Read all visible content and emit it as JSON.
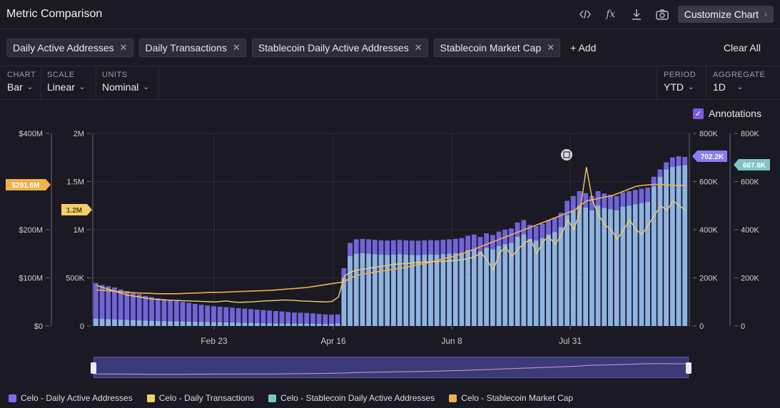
{
  "header": {
    "title": "Metric Comparison",
    "customize_label": "Customize Chart",
    "icons": [
      "code-icon",
      "formula-icon",
      "download-icon",
      "camera-icon"
    ]
  },
  "metrics": {
    "chips": [
      "Daily Active Addresses",
      "Daily Transactions",
      "Stablecoin Daily Active Addresses",
      "Stablecoin Market Cap"
    ],
    "add_label": "+ Add",
    "clear_label": "Clear All"
  },
  "controls": {
    "chart": {
      "label": "CHART",
      "value": "Bar"
    },
    "scale": {
      "label": "SCALE",
      "value": "Linear"
    },
    "units": {
      "label": "UNITS",
      "value": "Nominal"
    },
    "period": {
      "label": "PERIOD",
      "value": "YTD"
    },
    "aggregate": {
      "label": "AGGREGATE",
      "value": "1D"
    }
  },
  "annotations_label": "Annotations",
  "colors": {
    "purple": "#7b6cf0",
    "yellow": "#f2cf6b",
    "teal": "#7fc5c2",
    "orange": "#f0b04c",
    "blue_bar": "#8fb8e0"
  },
  "chart_data": {
    "type": "bar",
    "x_ticks": [
      "Feb 23",
      "Apr 16",
      "Jun 8",
      "Jul 31"
    ],
    "axes": {
      "left1": {
        "ticks": [
          "$0",
          "$100M",
          "$200M",
          "$400M"
        ],
        "range": [
          0,
          400000000
        ]
      },
      "left2": {
        "ticks": [
          "0",
          "500K",
          "1M",
          "1.5M",
          "2M"
        ],
        "range": [
          0,
          2000000
        ]
      },
      "right1": {
        "ticks": [
          "0",
          "200K",
          "400K",
          "600K",
          "800K"
        ],
        "range": [
          0,
          800000
        ]
      },
      "right2": {
        "ticks": [
          "0",
          "200K",
          "400K",
          "600K",
          "800K"
        ],
        "range": [
          0,
          800000
        ]
      }
    },
    "badges": {
      "market_cap": "$291.6M",
      "transactions": "1.2M",
      "daily_active": "702.2K",
      "stablecoin_active": "667.6K"
    },
    "series": [
      {
        "name": "Celo - Daily Active Addresses",
        "color": "#7b6cf0",
        "axis": "right1",
        "values": [
          178000,
          170000,
          165000,
          160000,
          152000,
          145000,
          140000,
          132000,
          125000,
          120000,
          115000,
          112000,
          108000,
          104000,
          100000,
          96000,
          92000,
          88000,
          85000,
          82000,
          80000,
          78000,
          76000,
          74000,
          72000,
          70000,
          68000,
          66000,
          64000,
          62000,
          60000,
          58000,
          56000,
          55000,
          54000,
          52000,
          50000,
          48000,
          47000,
          48000,
          240000,
          345000,
          360000,
          362000,
          360000,
          358000,
          356000,
          355000,
          356000,
          358000,
          356000,
          355000,
          354000,
          356000,
          357000,
          356000,
          358000,
          360000,
          362000,
          365000,
          375000,
          380000,
          370000,
          385000,
          378000,
          392000,
          400000,
          405000,
          430000,
          440000,
          420000,
          415000,
          425000,
          440000,
          450000,
          470000,
          520000,
          540000,
          560000,
          552000,
          540000,
          560000,
          550000,
          545000,
          540000,
          555000,
          560000,
          565000,
          570000,
          575000,
          620000,
          650000,
          680000,
          700000,
          705000,
          702000
        ]
      },
      {
        "name": "Celo - Daily Transactions",
        "color": "#f2cf6b",
        "axis": "left2",
        "values": [
          420000,
          400000,
          380000,
          360000,
          340000,
          320000,
          310000,
          300000,
          290000,
          280000,
          275000,
          270000,
          268000,
          265000,
          262000,
          260000,
          258000,
          255000,
          252000,
          250000,
          255000,
          260000,
          250000,
          245000,
          248000,
          250000,
          255000,
          260000,
          262000,
          265000,
          270000,
          268000,
          265000,
          260000,
          258000,
          255000,
          252000,
          250000,
          255000,
          300000,
          520000,
          560000,
          580000,
          590000,
          600000,
          610000,
          620000,
          630000,
          640000,
          645000,
          650000,
          655000,
          660000,
          665000,
          668000,
          670000,
          672000,
          675000,
          680000,
          690000,
          700000,
          720000,
          760000,
          680000,
          580000,
          760000,
          820000,
          720000,
          800000,
          860000,
          900000,
          750000,
          880000,
          920000,
          850000,
          950000,
          1100000,
          1000000,
          1200000,
          1650000,
          1300000,
          1150000,
          1050000,
          1000000,
          900000,
          1000000,
          1100000,
          1000000,
          950000,
          1050000,
          1150000,
          1250000,
          1200000,
          1300000,
          1250000,
          1200000
        ]
      },
      {
        "name": "Celo - Stablecoin Daily Active Addresses",
        "color": "#7fc5c2",
        "axis": "right2",
        "values": [
          30000,
          29000,
          28000,
          27000,
          26000,
          25000,
          24000,
          23000,
          22000,
          21000,
          20000,
          19500,
          19000,
          18500,
          18000,
          17500,
          17000,
          16500,
          16000,
          15500,
          15000,
          14500,
          14000,
          13500,
          13000,
          12500,
          12000,
          11500,
          11000,
          10500,
          10000,
          9800,
          9600,
          9400,
          9200,
          9000,
          8800,
          8600,
          8400,
          10000,
          200000,
          290000,
          300000,
          302000,
          300000,
          298000,
          296000,
          295000,
          296000,
          298000,
          296000,
          295000,
          294000,
          296000,
          297000,
          296000,
          298000,
          300000,
          302000,
          305000,
          315000,
          320000,
          310000,
          325000,
          318000,
          332000,
          340000,
          345000,
          370000,
          380000,
          360000,
          355000,
          365000,
          380000,
          390000,
          410000,
          460000,
          480000,
          500000,
          492000,
          480000,
          500000,
          490000,
          485000,
          480000,
          495000,
          500000,
          505000,
          510000,
          515000,
          580000,
          620000,
          650000,
          660000,
          665000,
          667600
        ]
      },
      {
        "name": "Celo - Stablecoin Market Cap",
        "color": "#f0b04c",
        "axis": "left1",
        "values": [
          75000000,
          74000000,
          73000000,
          72000000,
          71000000,
          70000000,
          69000000,
          68500000,
          68000000,
          67500000,
          67000000,
          67000000,
          67000000,
          67000000,
          67500000,
          68000000,
          68500000,
          69000000,
          69500000,
          70000000,
          70000000,
          70500000,
          71000000,
          71500000,
          72000000,
          72500000,
          73000000,
          73500000,
          74000000,
          75000000,
          76000000,
          77000000,
          78000000,
          79000000,
          80000000,
          82000000,
          84000000,
          86000000,
          88000000,
          90000000,
          92000000,
          100000000,
          105000000,
          108000000,
          110000000,
          112000000,
          114000000,
          116000000,
          118000000,
          120000000,
          122000000,
          125000000,
          128000000,
          130000000,
          133000000,
          136000000,
          140000000,
          143000000,
          146000000,
          150000000,
          155000000,
          160000000,
          165000000,
          170000000,
          175000000,
          180000000,
          185000000,
          190000000,
          195000000,
          200000000,
          205000000,
          210000000,
          215000000,
          220000000,
          225000000,
          230000000,
          235000000,
          240000000,
          250000000,
          260000000,
          262000000,
          265000000,
          268000000,
          270000000,
          275000000,
          280000000,
          285000000,
          290000000,
          292000000,
          293000000,
          294000000,
          294000000,
          293000000,
          292000000,
          292000000,
          291600000
        ]
      }
    ]
  }
}
